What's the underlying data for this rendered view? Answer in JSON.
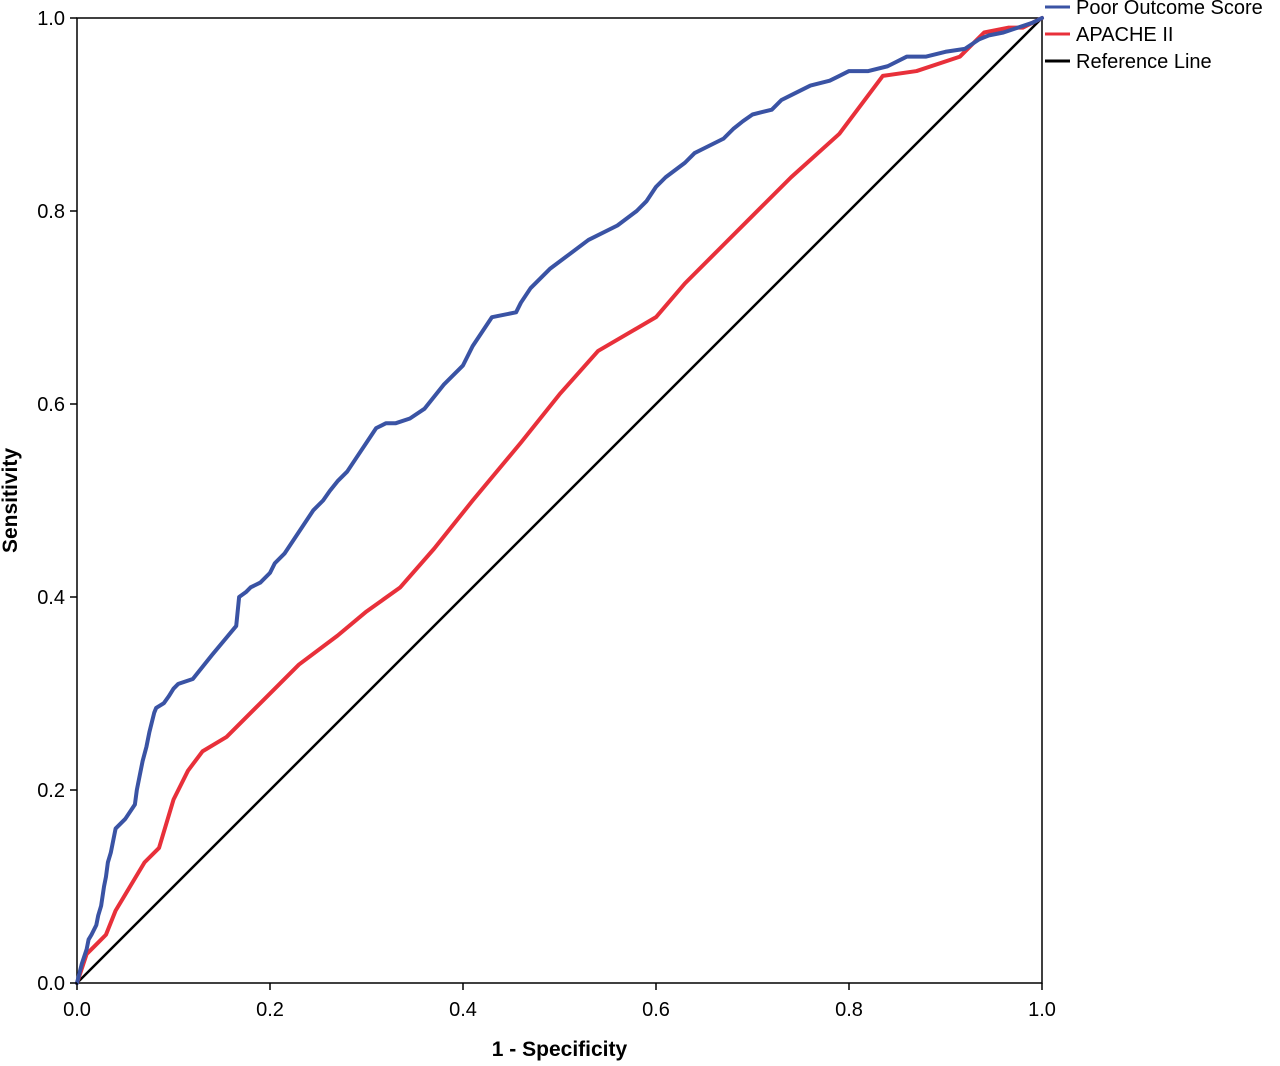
{
  "chart_data": {
    "type": "line",
    "title": "",
    "xlabel": "1 - Specificity",
    "ylabel": "Sensitivity",
    "xlim": [
      0,
      1
    ],
    "ylim": [
      0,
      1
    ],
    "xticks": [
      "0.0",
      "0.2",
      "0.4",
      "0.6",
      "0.8",
      "1.0"
    ],
    "yticks": [
      "0.0",
      "0.2",
      "0.4",
      "0.6",
      "0.8",
      "1.0"
    ],
    "grid": false,
    "legend_position": "top-right, outside plot",
    "series": [
      {
        "name": "Poor Outcome Score",
        "color": "#3a53a4",
        "x": [
          0,
          0.005,
          0.01,
          0.012,
          0.015,
          0.02,
          0.022,
          0.025,
          0.028,
          0.03,
          0.032,
          0.035,
          0.038,
          0.04,
          0.05,
          0.06,
          0.062,
          0.065,
          0.068,
          0.072,
          0.075,
          0.08,
          0.082,
          0.09,
          0.095,
          0.1,
          0.105,
          0.12,
          0.14,
          0.165,
          0.168,
          0.175,
          0.18,
          0.19,
          0.2,
          0.205,
          0.215,
          0.225,
          0.235,
          0.245,
          0.255,
          0.262,
          0.27,
          0.28,
          0.29,
          0.3,
          0.31,
          0.32,
          0.33,
          0.345,
          0.36,
          0.38,
          0.4,
          0.41,
          0.42,
          0.43,
          0.455,
          0.46,
          0.47,
          0.48,
          0.49,
          0.51,
          0.53,
          0.56,
          0.58,
          0.59,
          0.6,
          0.61,
          0.63,
          0.64,
          0.65,
          0.67,
          0.68,
          0.69,
          0.7,
          0.72,
          0.73,
          0.74,
          0.76,
          0.78,
          0.79,
          0.8,
          0.82,
          0.84,
          0.86,
          0.88,
          0.9,
          0.92,
          0.935,
          0.945,
          0.96,
          0.975,
          0.99,
          1.0
        ],
        "y": [
          0,
          0.02,
          0.035,
          0.045,
          0.05,
          0.06,
          0.07,
          0.08,
          0.1,
          0.11,
          0.125,
          0.135,
          0.15,
          0.16,
          0.17,
          0.185,
          0.2,
          0.215,
          0.23,
          0.245,
          0.26,
          0.28,
          0.285,
          0.29,
          0.297,
          0.305,
          0.31,
          0.315,
          0.34,
          0.37,
          0.4,
          0.405,
          0.41,
          0.415,
          0.425,
          0.435,
          0.445,
          0.46,
          0.475,
          0.49,
          0.5,
          0.51,
          0.52,
          0.53,
          0.545,
          0.56,
          0.575,
          0.58,
          0.58,
          0.585,
          0.595,
          0.62,
          0.64,
          0.66,
          0.675,
          0.69,
          0.695,
          0.705,
          0.72,
          0.73,
          0.74,
          0.755,
          0.77,
          0.785,
          0.8,
          0.81,
          0.825,
          0.835,
          0.85,
          0.86,
          0.865,
          0.875,
          0.885,
          0.893,
          0.9,
          0.905,
          0.915,
          0.92,
          0.93,
          0.935,
          0.94,
          0.945,
          0.945,
          0.95,
          0.96,
          0.96,
          0.965,
          0.968,
          0.978,
          0.982,
          0.985,
          0.99,
          0.995,
          1.0
        ]
      },
      {
        "name": "APACHE II",
        "color": "#e8303a",
        "x": [
          0,
          0.005,
          0.01,
          0.02,
          0.03,
          0.04,
          0.055,
          0.07,
          0.085,
          0.1,
          0.115,
          0.13,
          0.155,
          0.19,
          0.23,
          0.27,
          0.3,
          0.335,
          0.37,
          0.41,
          0.46,
          0.5,
          0.54,
          0.6,
          0.63,
          0.67,
          0.7,
          0.74,
          0.79,
          0.835,
          0.87,
          0.915,
          0.94,
          0.965,
          0.98,
          0.99,
          1.0
        ],
        "y": [
          0,
          0.015,
          0.03,
          0.04,
          0.05,
          0.075,
          0.1,
          0.125,
          0.14,
          0.19,
          0.22,
          0.24,
          0.255,
          0.29,
          0.33,
          0.36,
          0.385,
          0.41,
          0.45,
          0.5,
          0.56,
          0.61,
          0.655,
          0.69,
          0.725,
          0.765,
          0.795,
          0.835,
          0.88,
          0.94,
          0.945,
          0.96,
          0.985,
          0.99,
          0.99,
          0.995,
          1.0
        ]
      },
      {
        "name": "Reference Line",
        "color": "#000000",
        "x": [
          0,
          1
        ],
        "y": [
          0,
          1
        ]
      }
    ]
  }
}
